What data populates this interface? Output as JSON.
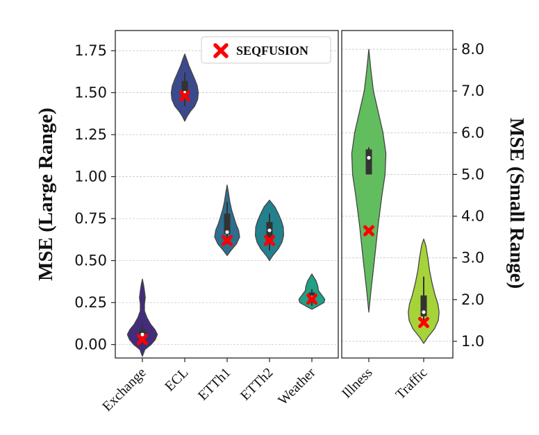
{
  "chart_data": [
    {
      "type": "violin",
      "panel": "left",
      "ylabel": "MSE (Large Range)",
      "ylim": [
        -0.08,
        1.87
      ],
      "yticks": [
        0.0,
        0.25,
        0.5,
        0.75,
        1.0,
        1.25,
        1.5,
        1.75
      ],
      "ytick_labels": [
        "0.00",
        "0.25",
        "0.50",
        "0.75",
        "1.00",
        "1.25",
        "1.50",
        "1.75"
      ],
      "grid": true,
      "legend": {
        "label": "SEQFUSION",
        "marker": "X",
        "color": "#ff0000",
        "placement": "top-right"
      },
      "series": [
        {
          "name": "Exchange",
          "color": "#432c7a",
          "profile": [
            [
              -0.07,
              0
            ],
            [
              -0.03,
              0.12
            ],
            [
              0.0,
              0.42
            ],
            [
              0.03,
              0.62
            ],
            [
              0.06,
              0.72
            ],
            [
              0.09,
              0.6
            ],
            [
              0.12,
              0.4
            ],
            [
              0.16,
              0.22
            ],
            [
              0.2,
              0.1
            ],
            [
              0.24,
              0.1
            ],
            [
              0.28,
              0.14
            ],
            [
              0.32,
              0.1
            ],
            [
              0.36,
              0.05
            ],
            [
              0.39,
              0
            ]
          ],
          "q1": 0.03,
          "q3": 0.09,
          "median": 0.06,
          "whisker": [
            0.0,
            0.12
          ],
          "seqfusion": 0.03
        },
        {
          "name": "ECL",
          "color": "#3a4a8c",
          "profile": [
            [
              1.33,
              0
            ],
            [
              1.36,
              0.12
            ],
            [
              1.39,
              0.28
            ],
            [
              1.42,
              0.48
            ],
            [
              1.46,
              0.62
            ],
            [
              1.5,
              0.65
            ],
            [
              1.54,
              0.6
            ],
            [
              1.58,
              0.48
            ],
            [
              1.62,
              0.34
            ],
            [
              1.66,
              0.2
            ],
            [
              1.7,
              0.09
            ],
            [
              1.73,
              0
            ]
          ],
          "q1": 1.46,
          "q3": 1.57,
          "median": 1.5,
          "whisker": [
            1.42,
            1.62
          ],
          "seqfusion": 1.48
        },
        {
          "name": "ETTh1",
          "color": "#2e6e8e",
          "profile": [
            [
              0.53,
              0
            ],
            [
              0.56,
              0.18
            ],
            [
              0.6,
              0.45
            ],
            [
              0.64,
              0.6
            ],
            [
              0.68,
              0.55
            ],
            [
              0.72,
              0.42
            ],
            [
              0.76,
              0.32
            ],
            [
              0.8,
              0.22
            ],
            [
              0.85,
              0.13
            ],
            [
              0.9,
              0.07
            ],
            [
              0.95,
              0
            ]
          ],
          "q1": 0.66,
          "q3": 0.78,
          "median": 0.67,
          "whisker": [
            0.6,
            0.85
          ],
          "seqfusion": 0.62
        },
        {
          "name": "ETTh2",
          "color": "#23818e",
          "profile": [
            [
              0.5,
              0
            ],
            [
              0.53,
              0.16
            ],
            [
              0.57,
              0.42
            ],
            [
              0.61,
              0.6
            ],
            [
              0.65,
              0.68
            ],
            [
              0.7,
              0.66
            ],
            [
              0.74,
              0.56
            ],
            [
              0.78,
              0.42
            ],
            [
              0.82,
              0.26
            ],
            [
              0.86,
              0
            ]
          ],
          "q1": 0.61,
          "q3": 0.73,
          "median": 0.68,
          "whisker": [
            0.56,
            0.78
          ],
          "seqfusion": 0.62
        },
        {
          "name": "Weather",
          "color": "#21a085",
          "profile": [
            [
              0.21,
              0
            ],
            [
              0.23,
              0.3
            ],
            [
              0.25,
              0.58
            ],
            [
              0.27,
              0.62
            ],
            [
              0.29,
              0.5
            ],
            [
              0.32,
              0.32
            ],
            [
              0.35,
              0.28
            ],
            [
              0.38,
              0.2
            ],
            [
              0.42,
              0
            ]
          ],
          "q1": 0.25,
          "q3": 0.31,
          "median": 0.28,
          "whisker": [
            0.23,
            0.33
          ],
          "seqfusion": 0.27
        }
      ]
    },
    {
      "type": "violin",
      "panel": "right",
      "ylabel": "MSE (Small Range)",
      "ylim": [
        0.6,
        8.45
      ],
      "yticks": [
        1.0,
        2.0,
        3.0,
        4.0,
        5.0,
        6.0,
        7.0,
        8.0
      ],
      "ytick_labels": [
        "1.0",
        "2.0",
        "3.0",
        "4.0",
        "5.0",
        "6.0",
        "7.0",
        "8.0"
      ],
      "grid": true,
      "series": [
        {
          "name": "Illness",
          "color": "#62bd5f",
          "profile": [
            [
              1.7,
              0
            ],
            [
              2.2,
              0.1
            ],
            [
              3.0,
              0.28
            ],
            [
              3.8,
              0.45
            ],
            [
              4.5,
              0.63
            ],
            [
              5.0,
              0.78
            ],
            [
              5.5,
              0.82
            ],
            [
              6.0,
              0.68
            ],
            [
              6.5,
              0.45
            ],
            [
              7.0,
              0.22
            ],
            [
              7.5,
              0.1
            ],
            [
              8.0,
              0
            ]
          ],
          "q1": 5.0,
          "q3": 5.6,
          "median": 5.4,
          "whisker": [
            5.0,
            5.65
          ],
          "seqfusion": 3.65
        },
        {
          "name": "Traffic",
          "color": "#a6d33a",
          "profile": [
            [
              0.95,
              0
            ],
            [
              1.1,
              0.2
            ],
            [
              1.3,
              0.52
            ],
            [
              1.5,
              0.7
            ],
            [
              1.7,
              0.74
            ],
            [
              1.9,
              0.68
            ],
            [
              2.1,
              0.55
            ],
            [
              2.4,
              0.4
            ],
            [
              2.7,
              0.28
            ],
            [
              3.0,
              0.2
            ],
            [
              3.3,
              0.1
            ],
            [
              3.45,
              0
            ]
          ],
          "q1": 1.6,
          "q3": 2.1,
          "median": 1.7,
          "whisker": [
            1.45,
            2.55
          ],
          "seqfusion": 1.45
        }
      ]
    }
  ]
}
